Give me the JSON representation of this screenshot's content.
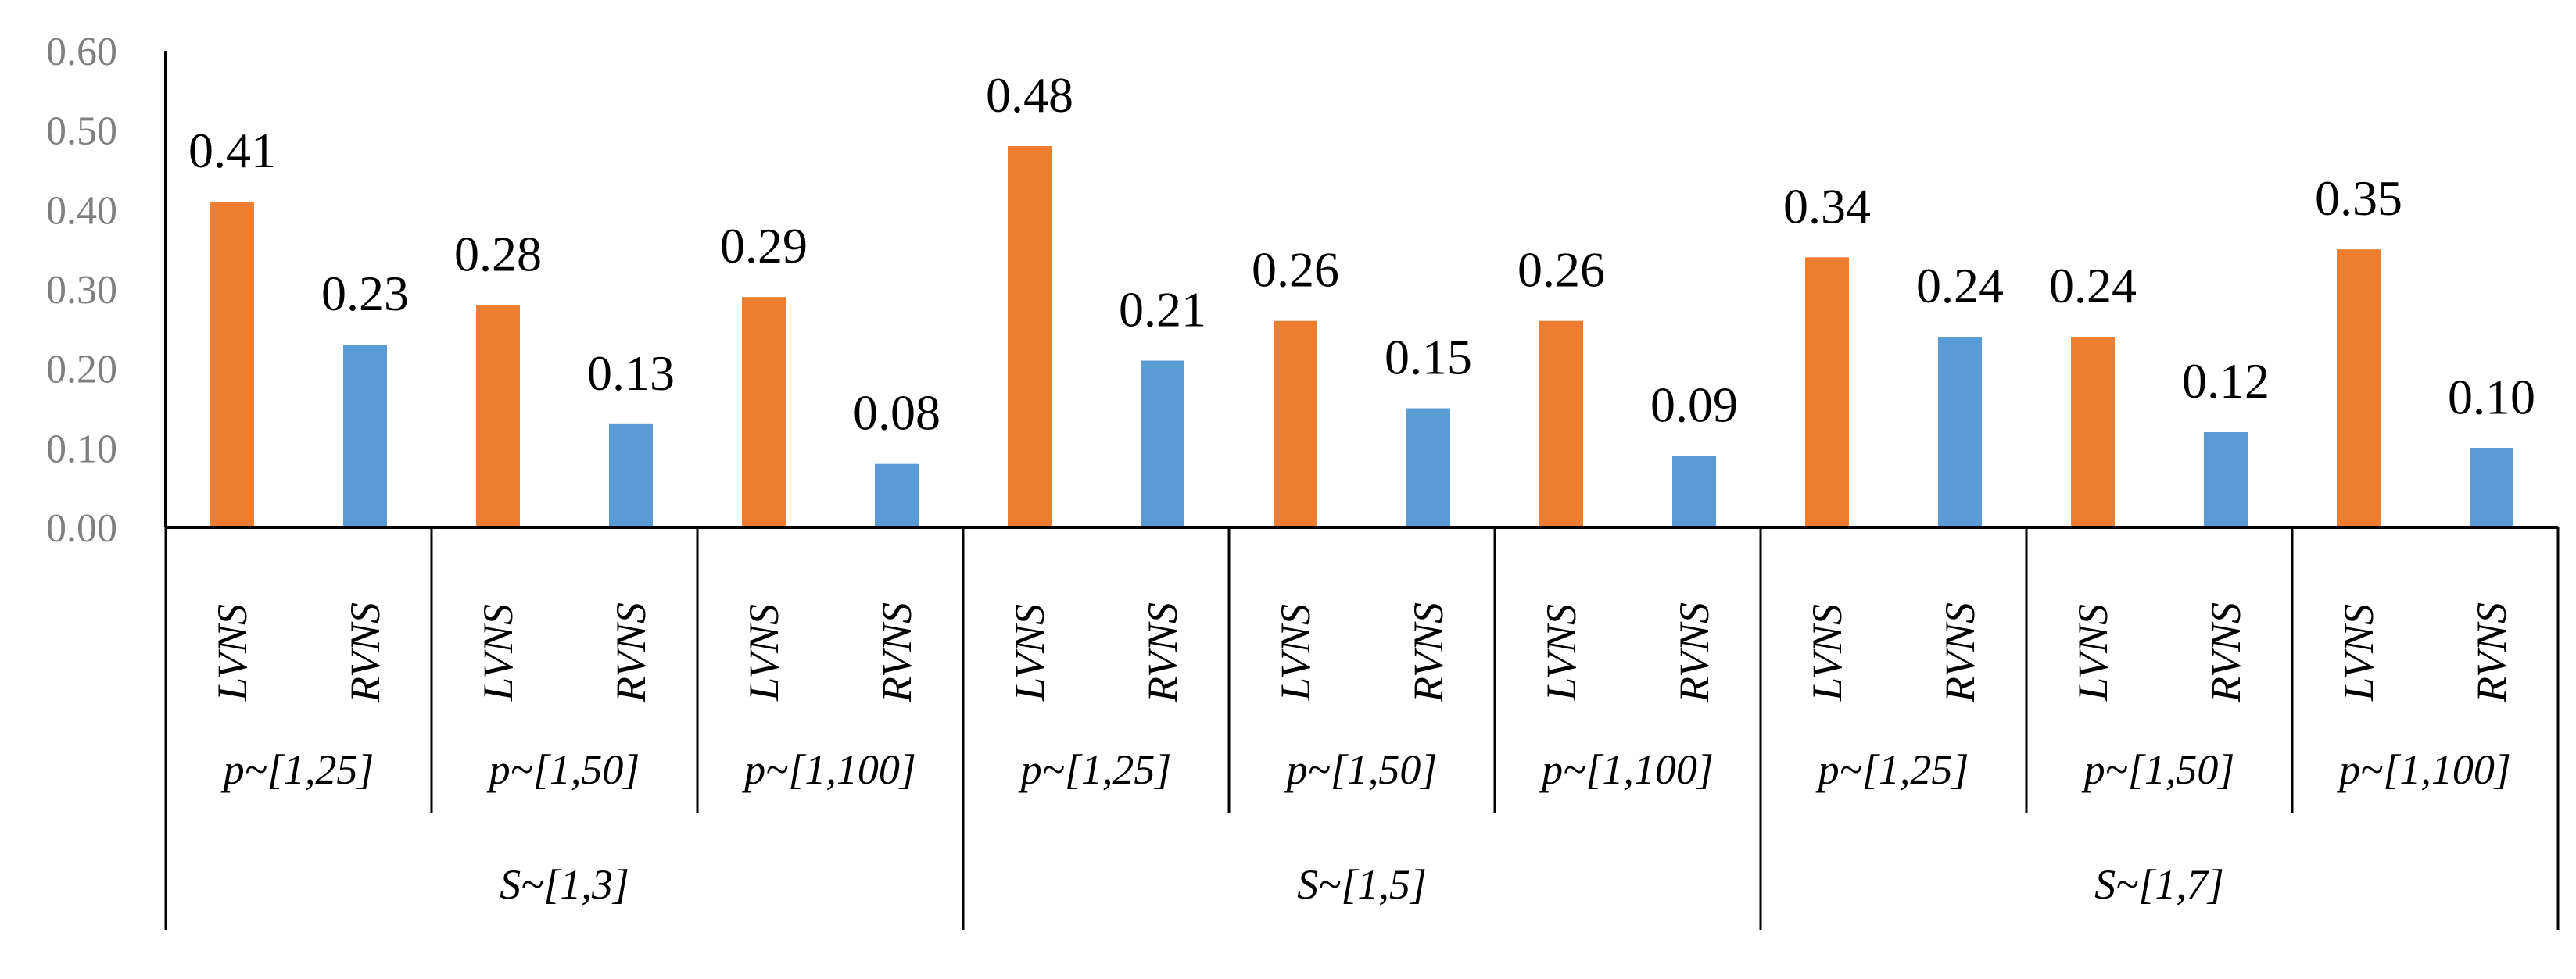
{
  "chart_data": {
    "type": "bar",
    "title": "",
    "xlabel": "",
    "ylabel": "",
    "ylim": [
      0,
      0.6
    ],
    "yticks": [
      "0.00",
      "0.10",
      "0.20",
      "0.30",
      "0.40",
      "0.50",
      "0.60"
    ],
    "grid": false,
    "legend": "none",
    "colors": {
      "LVNS": "#ED7D31",
      "RVNS": "#5B9BD5"
    },
    "groups": [
      {
        "label": "S~[1,3]",
        "subgroups": [
          {
            "label": "p~[1,25]",
            "bars": [
              {
                "name": "LVNS",
                "value": 0.41,
                "label": "0.41"
              },
              {
                "name": "RVNS",
                "value": 0.23,
                "label": "0.23"
              }
            ]
          },
          {
            "label": "p~[1,50]",
            "bars": [
              {
                "name": "LVNS",
                "value": 0.28,
                "label": "0.28"
              },
              {
                "name": "RVNS",
                "value": 0.13,
                "label": "0.13"
              }
            ]
          },
          {
            "label": "p~[1,100]",
            "bars": [
              {
                "name": "LVNS",
                "value": 0.29,
                "label": "0.29"
              },
              {
                "name": "RVNS",
                "value": 0.08,
                "label": "0.08"
              }
            ]
          }
        ]
      },
      {
        "label": "S~[1,5]",
        "subgroups": [
          {
            "label": "p~[1,25]",
            "bars": [
              {
                "name": "LVNS",
                "value": 0.48,
                "label": "0.48"
              },
              {
                "name": "RVNS",
                "value": 0.21,
                "label": "0.21"
              }
            ]
          },
          {
            "label": "p~[1,50]",
            "bars": [
              {
                "name": "LVNS",
                "value": 0.26,
                "label": "0.26"
              },
              {
                "name": "RVNS",
                "value": 0.15,
                "label": "0.15"
              }
            ]
          },
          {
            "label": "p~[1,100]",
            "bars": [
              {
                "name": "LVNS",
                "value": 0.26,
                "label": "0.26"
              },
              {
                "name": "RVNS",
                "value": 0.09,
                "label": "0.09"
              }
            ]
          }
        ]
      },
      {
        "label": "S~[1,7]",
        "subgroups": [
          {
            "label": "p~[1,25]",
            "bars": [
              {
                "name": "LVNS",
                "value": 0.34,
                "label": "0.34"
              },
              {
                "name": "RVNS",
                "value": 0.24,
                "label": "0.24"
              }
            ]
          },
          {
            "label": "p~[1,50]",
            "bars": [
              {
                "name": "LVNS",
                "value": 0.24,
                "label": "0.24"
              },
              {
                "name": "RVNS",
                "value": 0.12,
                "label": "0.12"
              }
            ]
          },
          {
            "label": "p~[1,100]",
            "bars": [
              {
                "name": "LVNS",
                "value": 0.35,
                "label": "0.35"
              },
              {
                "name": "RVNS",
                "value": 0.1,
                "label": "0.10"
              }
            ]
          }
        ]
      }
    ]
  }
}
